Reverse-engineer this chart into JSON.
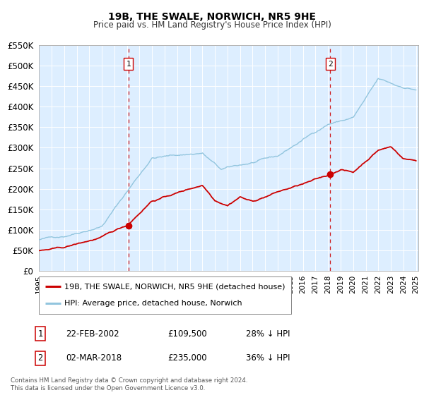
{
  "title": "19B, THE SWALE, NORWICH, NR5 9HE",
  "subtitle": "Price paid vs. HM Land Registry's House Price Index (HPI)",
  "hpi_color": "#92c5de",
  "price_color": "#cc0000",
  "vline_color": "#cc0000",
  "plot_bg_color": "#ddeeff",
  "background_color": "#ffffff",
  "grid_color": "#ffffff",
  "ylim": [
    0,
    550000
  ],
  "xlim_start": 1995.0,
  "xlim_end": 2025.2,
  "yticks": [
    0,
    50000,
    100000,
    150000,
    200000,
    250000,
    300000,
    350000,
    400000,
    450000,
    500000,
    550000
  ],
  "ytick_labels": [
    "£0",
    "£50K",
    "£100K",
    "£150K",
    "£200K",
    "£250K",
    "£300K",
    "£350K",
    "£400K",
    "£450K",
    "£500K",
    "£550K"
  ],
  "xticks": [
    1995,
    1996,
    1997,
    1998,
    1999,
    2000,
    2001,
    2002,
    2003,
    2004,
    2005,
    2006,
    2007,
    2008,
    2009,
    2010,
    2011,
    2012,
    2013,
    2014,
    2015,
    2016,
    2017,
    2018,
    2019,
    2020,
    2021,
    2022,
    2023,
    2024,
    2025
  ],
  "sale1_x": 2002.13,
  "sale1_y": 109500,
  "sale1_label": "1",
  "sale1_date": "22-FEB-2002",
  "sale1_price": "£109,500",
  "sale1_hpi": "28% ↓ HPI",
  "sale2_x": 2018.17,
  "sale2_y": 235000,
  "sale2_label": "2",
  "sale2_date": "02-MAR-2018",
  "sale2_price": "£235,000",
  "sale2_hpi": "36% ↓ HPI",
  "legend_line1": "19B, THE SWALE, NORWICH, NR5 9HE (detached house)",
  "legend_line2": "HPI: Average price, detached house, Norwich",
  "footer1": "Contains HM Land Registry data © Crown copyright and database right 2024.",
  "footer2": "This data is licensed under the Open Government Licence v3.0."
}
